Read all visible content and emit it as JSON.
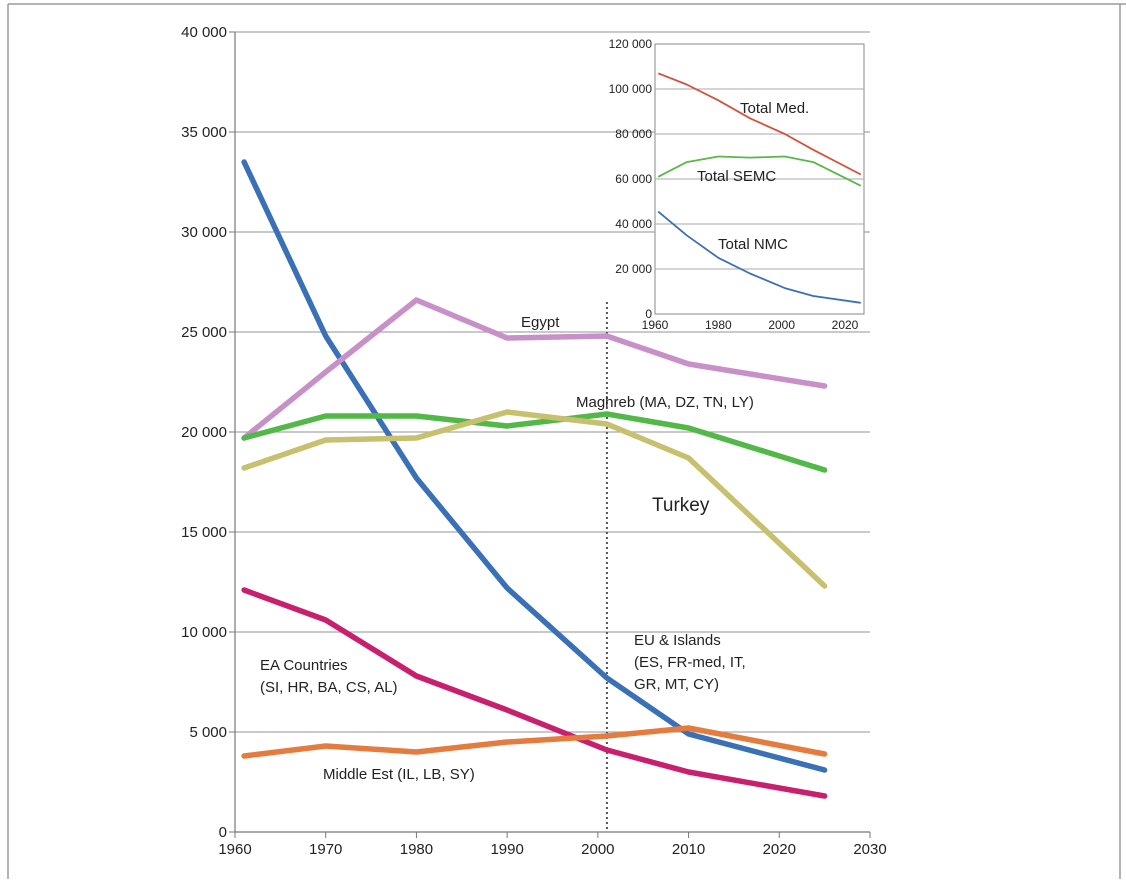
{
  "chart_data": [
    {
      "type": "line",
      "title": "",
      "xlabel": "",
      "ylabel": "",
      "xlim": [
        1960,
        2030
      ],
      "ylim": [
        0,
        40000
      ],
      "xticks": [
        "1960",
        "1970",
        "1980",
        "1990",
        "2000",
        "2010",
        "2020",
        "2030"
      ],
      "yticks": [
        "0",
        "5 000",
        "10 000",
        "15 000",
        "20 000",
        "25 000",
        "30 000",
        "35 000",
        "40 000"
      ],
      "grid": "horizontal",
      "reference_line_x": 2001,
      "series": [
        {
          "label": "EU & Islands (ES, FR-med, IT, GR, MT, CY)",
          "color": "#3a70b6",
          "x": [
            1961,
            1970,
            1980,
            1990,
            2001,
            2010,
            2025
          ],
          "y": [
            33500,
            24800,
            17700,
            12200,
            7700,
            4900,
            3100
          ]
        },
        {
          "label": "Egypt",
          "color": "#c890c8",
          "x": [
            1961,
            1970,
            1980,
            1990,
            2001,
            2010,
            2025
          ],
          "y": [
            19700,
            23000,
            26600,
            24700,
            24800,
            23400,
            22300
          ]
        },
        {
          "label": "Maghreb (MA, DZ, TN, LY)",
          "color": "#52b848",
          "x": [
            1961,
            1970,
            1980,
            1990,
            2001,
            2010,
            2025
          ],
          "y": [
            19700,
            20800,
            20800,
            20300,
            20900,
            20200,
            18100
          ]
        },
        {
          "label": "Turkey",
          "color": "#c7c06e",
          "x": [
            1961,
            1970,
            1980,
            1990,
            2001,
            2010,
            2025
          ],
          "y": [
            18200,
            19600,
            19700,
            21000,
            20400,
            18700,
            12300
          ]
        },
        {
          "label": "EA Countries (SI, HR, BA, CS, AL)",
          "color": "#c8206e",
          "x": [
            1961,
            1970,
            1980,
            1990,
            2001,
            2010,
            2025
          ],
          "y": [
            12100,
            10600,
            7800,
            6100,
            4100,
            3000,
            1800
          ]
        },
        {
          "label": "Middle Est (IL, LB, SY)",
          "color": "#e47c40",
          "x": [
            1961,
            1970,
            1980,
            1990,
            2001,
            2010,
            2025
          ],
          "y": [
            3800,
            4300,
            4000,
            4500,
            4800,
            5200,
            3900
          ]
        }
      ],
      "annotations": {
        "egypt": "Egypt",
        "maghreb": "Maghreb (MA, DZ, TN, LY)",
        "turkey": "Turkey",
        "eu_line1": "EU & Islands",
        "eu_line2": "(ES, FR-med, IT,",
        "eu_line3": "GR, MT, CY)",
        "ea_line1": "EA Countries",
        "ea_line2": "(SI, HR, BA, CS, AL)",
        "middle_est": "Middle Est (IL, LB, SY)"
      }
    },
    {
      "type": "line",
      "title": "",
      "xlabel": "",
      "ylabel": "",
      "xlim": [
        1960,
        2026
      ],
      "ylim": [
        0,
        120000
      ],
      "xticks": [
        "1960",
        "1980",
        "2000",
        "2020"
      ],
      "yticks": [
        "0",
        "20 000",
        "40 000",
        "60 000",
        "80 000",
        "100 000",
        "120 000"
      ],
      "grid": "horizontal",
      "series": [
        {
          "label": "Total Med.",
          "color": "#d2523c",
          "x": [
            1961,
            1970,
            1980,
            1990,
            2001,
            2010,
            2025
          ],
          "y": [
            107000,
            102000,
            95000,
            87000,
            80000,
            73000,
            62000
          ]
        },
        {
          "label": "Total SEMC",
          "color": "#58b848",
          "x": [
            1961,
            1970,
            1980,
            1990,
            2001,
            2010,
            2025
          ],
          "y": [
            61000,
            67500,
            70000,
            69500,
            70000,
            67500,
            57000
          ]
        },
        {
          "label": "Total NMC",
          "color": "#3e6eb4",
          "x": [
            1961,
            1970,
            1980,
            1990,
            2001,
            2010,
            2025
          ],
          "y": [
            45500,
            35000,
            25000,
            18000,
            11500,
            8000,
            5000
          ]
        }
      ]
    }
  ]
}
